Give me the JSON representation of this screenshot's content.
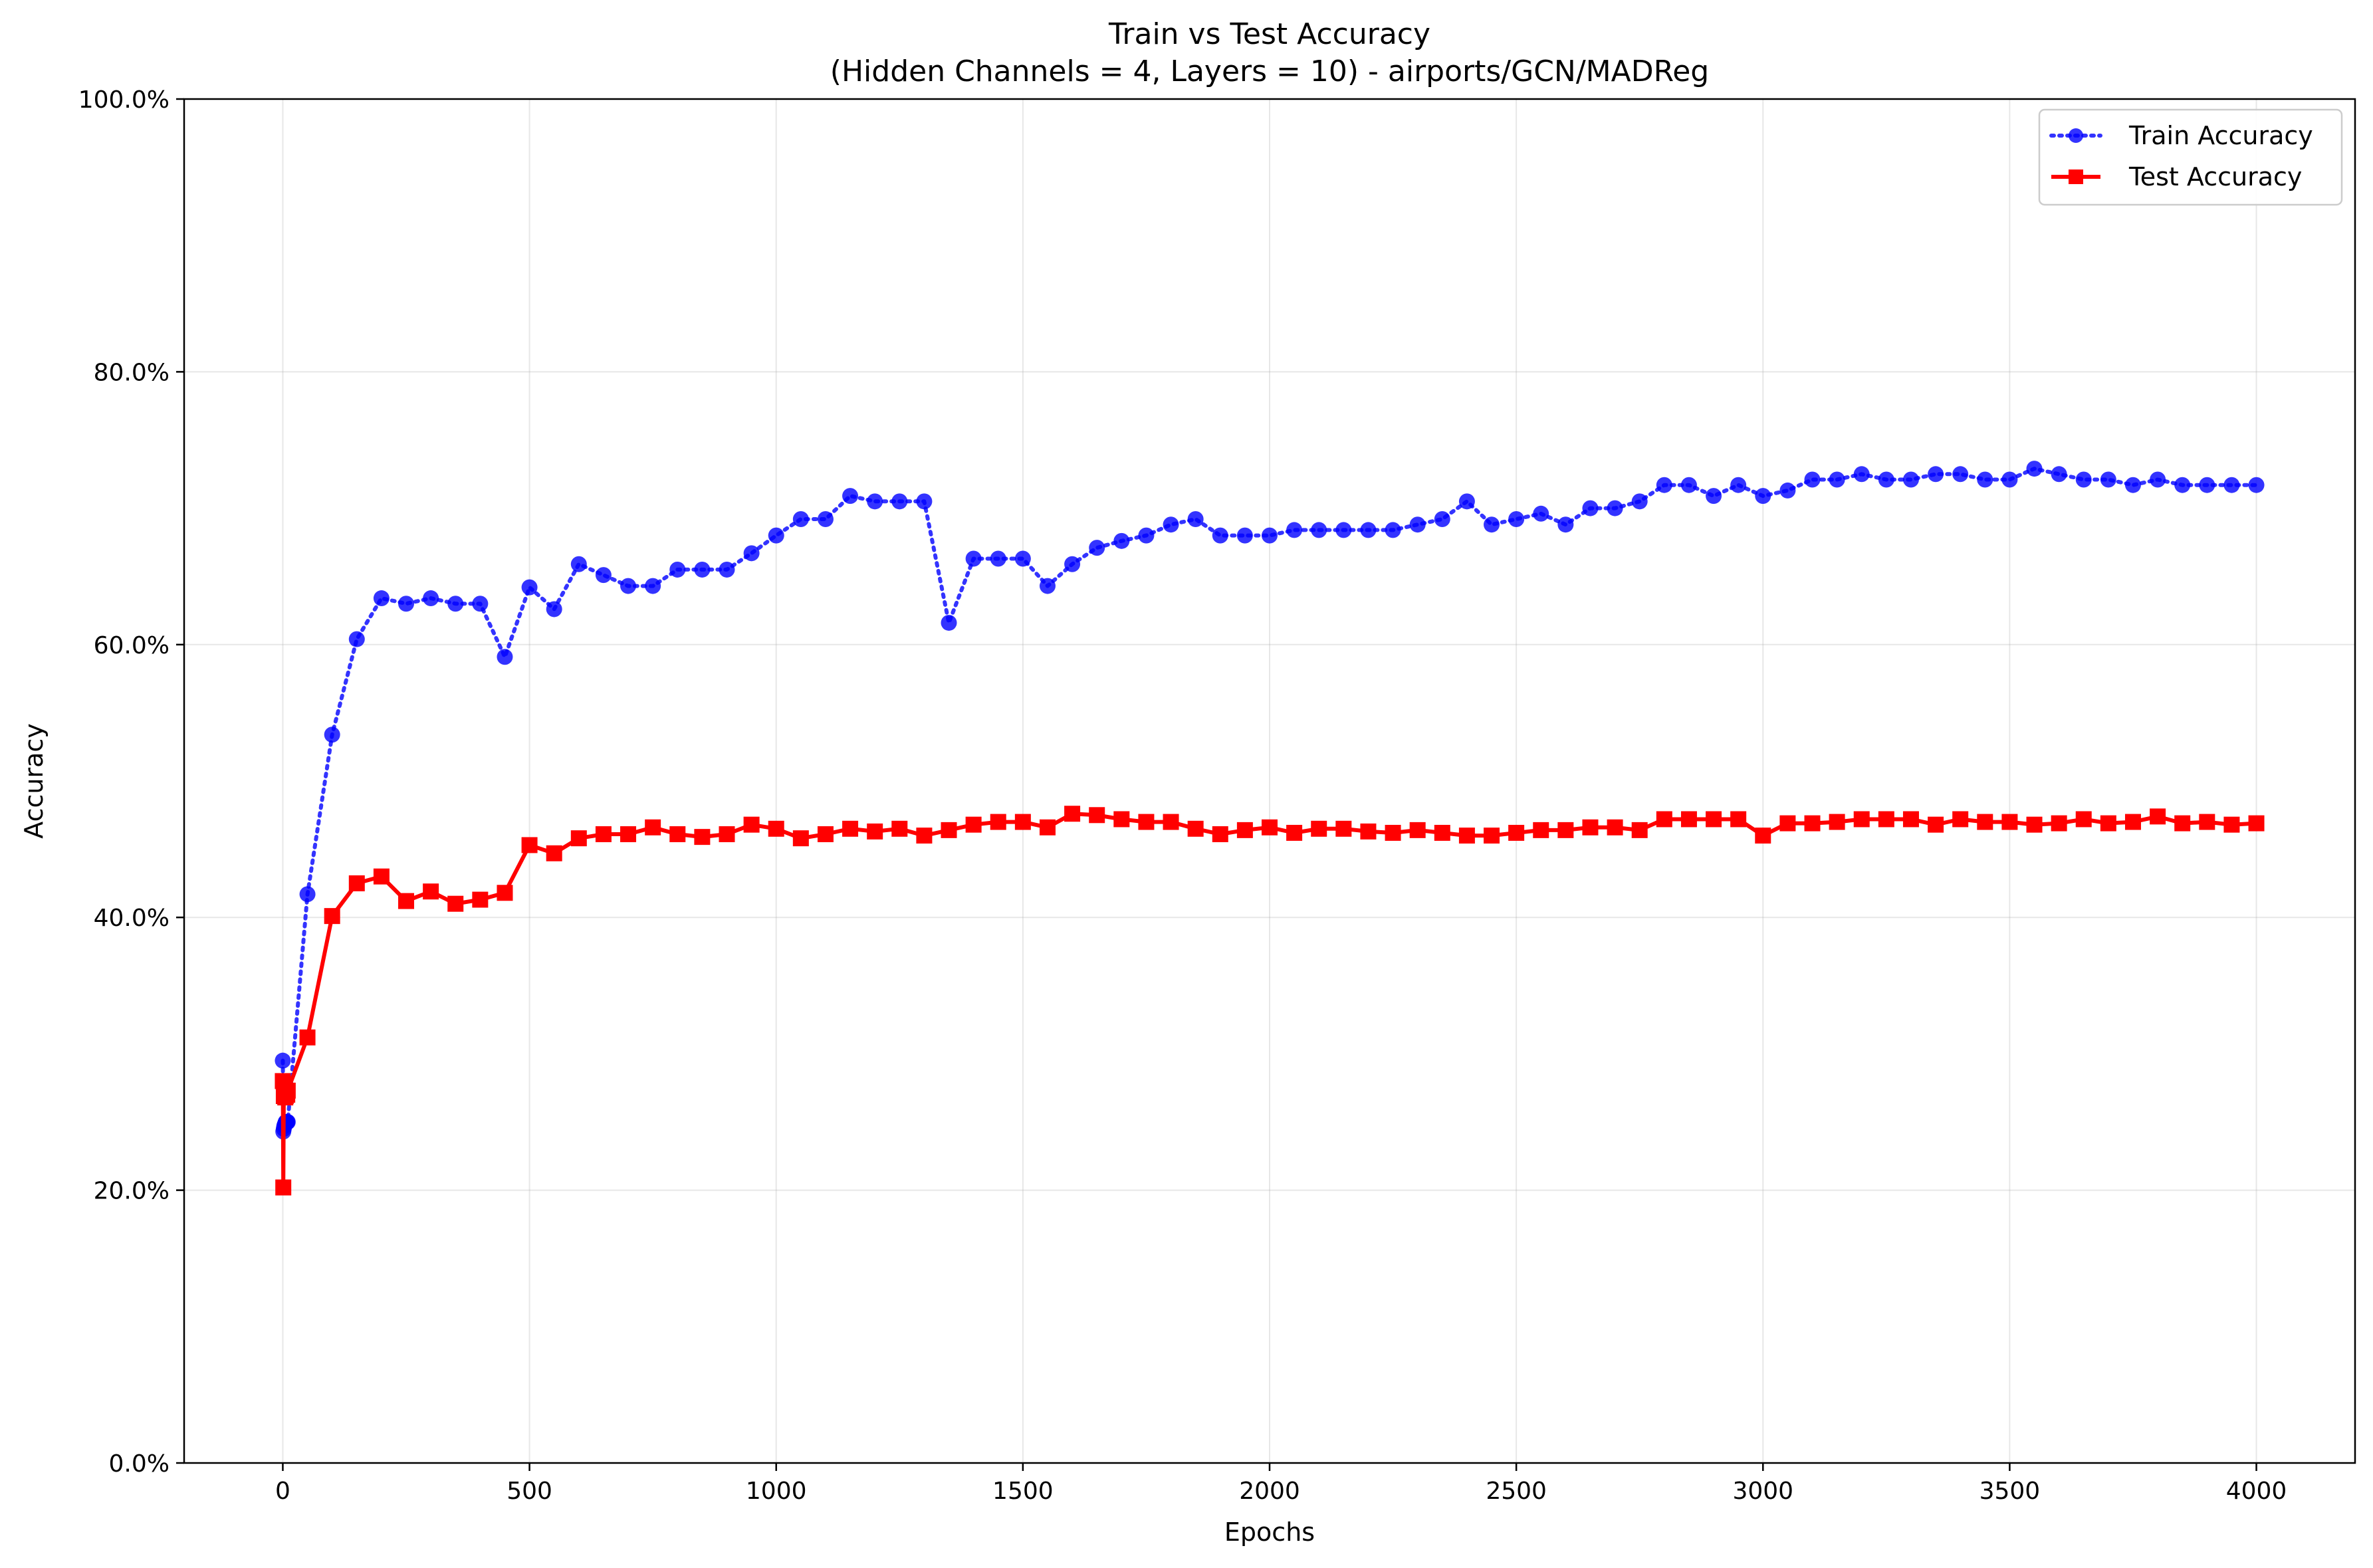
{
  "chart_data": {
    "type": "line",
    "title": "Train vs Test Accuracy",
    "subtitle": "(Hidden Channels = 4, Layers = 10) - airports/GCN/MADReg",
    "xlabel": "Epochs",
    "ylabel": "Accuracy",
    "xlim": [
      -200,
      4200
    ],
    "ylim": [
      0,
      100
    ],
    "x_ticks": [
      0,
      500,
      1000,
      1500,
      2000,
      2500,
      3000,
      3500,
      4000
    ],
    "x_tick_labels": [
      "0",
      "500",
      "1000",
      "1500",
      "2000",
      "2500",
      "3000",
      "3500",
      "4000"
    ],
    "y_ticks": [
      0,
      20,
      40,
      60,
      80,
      100
    ],
    "y_tick_labels": [
      "0.0%",
      "20.0%",
      "40.0%",
      "60.0%",
      "80.0%",
      "100.0%"
    ],
    "grid": true,
    "legend_position": "top-right",
    "series": [
      {
        "name": "Train Accuracy",
        "color": "#0000ff",
        "line_style": "dotted",
        "marker": "circle",
        "x": [
          0,
          1,
          2,
          3,
          4,
          5,
          6,
          7,
          8,
          9,
          10,
          50,
          100,
          150,
          200,
          250,
          300,
          350,
          400,
          450,
          500,
          550,
          600,
          650,
          700,
          750,
          800,
          850,
          900,
          950,
          1000,
          1050,
          1100,
          1150,
          1200,
          1250,
          1300,
          1350,
          1400,
          1450,
          1500,
          1550,
          1600,
          1650,
          1700,
          1750,
          1800,
          1850,
          1900,
          1950,
          2000,
          2050,
          2100,
          2150,
          2200,
          2250,
          2300,
          2350,
          2400,
          2450,
          2500,
          2550,
          2600,
          2650,
          2700,
          2750,
          2800,
          2850,
          2900,
          2950,
          3000,
          3050,
          3100,
          3150,
          3200,
          3250,
          3300,
          3350,
          3400,
          3450,
          3500,
          3550,
          3600,
          3650,
          3700,
          3750,
          3800,
          3850,
          3900,
          3950,
          4000
        ],
        "values": [
          29.5,
          24.3,
          24.5,
          24.7,
          24.8,
          24.9,
          25.0,
          25.0,
          25.0,
          25.0,
          25.0,
          41.7,
          53.4,
          60.4,
          63.4,
          63.0,
          63.4,
          63.0,
          63.0,
          59.1,
          64.2,
          62.6,
          65.9,
          65.1,
          64.3,
          64.3,
          65.5,
          65.5,
          65.5,
          66.7,
          68.0,
          69.2,
          69.2,
          70.9,
          70.5,
          70.5,
          70.5,
          61.6,
          66.3,
          66.3,
          66.3,
          64.3,
          65.9,
          67.1,
          67.6,
          68.0,
          68.8,
          69.2,
          68.0,
          68.0,
          68.0,
          68.4,
          68.4,
          68.4,
          68.4,
          68.4,
          68.8,
          69.2,
          70.5,
          68.8,
          69.2,
          69.6,
          68.8,
          70.0,
          70.0,
          70.5,
          71.7,
          71.7,
          70.9,
          71.7,
          70.9,
          71.3,
          72.1,
          72.1,
          72.5,
          72.1,
          72.1,
          72.5,
          72.5,
          72.1,
          72.1,
          72.9,
          72.5,
          72.1,
          72.1,
          71.7,
          72.1,
          71.7,
          71.7,
          71.7,
          71.7
        ]
      },
      {
        "name": "Test Accuracy",
        "color": "#ff0000",
        "line_style": "solid",
        "marker": "square",
        "x": [
          0,
          1,
          2,
          3,
          4,
          5,
          6,
          7,
          8,
          9,
          10,
          50,
          100,
          150,
          200,
          250,
          300,
          350,
          400,
          450,
          500,
          550,
          600,
          650,
          700,
          750,
          800,
          850,
          900,
          950,
          1000,
          1050,
          1100,
          1150,
          1200,
          1250,
          1300,
          1350,
          1400,
          1450,
          1500,
          1550,
          1600,
          1650,
          1700,
          1750,
          1800,
          1850,
          1900,
          1950,
          2000,
          2050,
          2100,
          2150,
          2200,
          2250,
          2300,
          2350,
          2400,
          2450,
          2500,
          2550,
          2600,
          2650,
          2700,
          2750,
          2800,
          2850,
          2900,
          2950,
          3000,
          3050,
          3100,
          3150,
          3200,
          3250,
          3300,
          3350,
          3400,
          3450,
          3500,
          3550,
          3600,
          3650,
          3700,
          3750,
          3800,
          3850,
          3900,
          3950,
          4000
        ],
        "values": [
          28.0,
          20.2,
          26.9,
          27.3,
          27.0,
          26.8,
          26.9,
          27.0,
          27.0,
          27.0,
          27.3,
          31.2,
          40.1,
          42.5,
          43.0,
          41.2,
          41.9,
          41.0,
          41.3,
          41.8,
          45.3,
          44.7,
          45.8,
          46.1,
          46.1,
          46.6,
          46.1,
          45.9,
          46.1,
          46.8,
          46.5,
          45.8,
          46.1,
          46.5,
          46.3,
          46.5,
          46.0,
          46.4,
          46.8,
          47.0,
          47.0,
          46.6,
          47.6,
          47.5,
          47.2,
          47.0,
          47.0,
          46.5,
          46.1,
          46.4,
          46.6,
          46.2,
          46.5,
          46.5,
          46.3,
          46.2,
          46.4,
          46.2,
          46.0,
          46.0,
          46.2,
          46.4,
          46.4,
          46.6,
          46.6,
          46.4,
          47.2,
          47.2,
          47.2,
          47.2,
          46.0,
          46.9,
          46.9,
          47.0,
          47.2,
          47.2,
          47.2,
          46.8,
          47.2,
          47.0,
          47.0,
          46.8,
          46.9,
          47.2,
          46.9,
          47.0,
          47.4,
          46.9,
          47.0,
          46.8,
          46.9
        ]
      }
    ]
  }
}
